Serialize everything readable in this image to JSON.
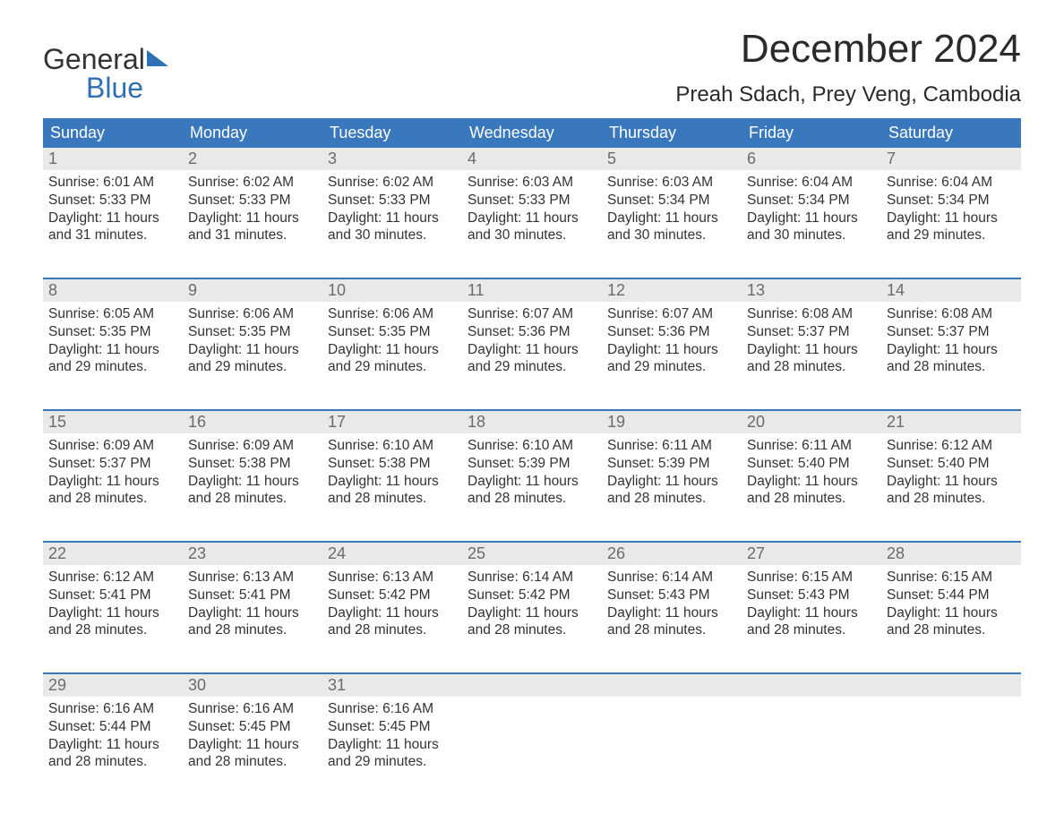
{
  "brand": {
    "word1": "General",
    "word2": "Blue"
  },
  "title": "December 2024",
  "location": "Preah Sdach, Prey Veng, Cambodia",
  "colors": {
    "header_bg": "#3a78bd",
    "header_text": "#ffffff",
    "daynum_bg": "#e9e9e9",
    "daynum_text": "#6b6b6b",
    "body_text": "#333333",
    "accent": "#2f6fb4",
    "page_bg": "#ffffff"
  },
  "weekdays": [
    "Sunday",
    "Monday",
    "Tuesday",
    "Wednesday",
    "Thursday",
    "Friday",
    "Saturday"
  ],
  "weeks": [
    [
      {
        "n": "1",
        "sunrise": "Sunrise: 6:01 AM",
        "sunset": "Sunset: 5:33 PM",
        "d1": "Daylight: 11 hours",
        "d2": "and 31 minutes."
      },
      {
        "n": "2",
        "sunrise": "Sunrise: 6:02 AM",
        "sunset": "Sunset: 5:33 PM",
        "d1": "Daylight: 11 hours",
        "d2": "and 31 minutes."
      },
      {
        "n": "3",
        "sunrise": "Sunrise: 6:02 AM",
        "sunset": "Sunset: 5:33 PM",
        "d1": "Daylight: 11 hours",
        "d2": "and 30 minutes."
      },
      {
        "n": "4",
        "sunrise": "Sunrise: 6:03 AM",
        "sunset": "Sunset: 5:33 PM",
        "d1": "Daylight: 11 hours",
        "d2": "and 30 minutes."
      },
      {
        "n": "5",
        "sunrise": "Sunrise: 6:03 AM",
        "sunset": "Sunset: 5:34 PM",
        "d1": "Daylight: 11 hours",
        "d2": "and 30 minutes."
      },
      {
        "n": "6",
        "sunrise": "Sunrise: 6:04 AM",
        "sunset": "Sunset: 5:34 PM",
        "d1": "Daylight: 11 hours",
        "d2": "and 30 minutes."
      },
      {
        "n": "7",
        "sunrise": "Sunrise: 6:04 AM",
        "sunset": "Sunset: 5:34 PM",
        "d1": "Daylight: 11 hours",
        "d2": "and 29 minutes."
      }
    ],
    [
      {
        "n": "8",
        "sunrise": "Sunrise: 6:05 AM",
        "sunset": "Sunset: 5:35 PM",
        "d1": "Daylight: 11 hours",
        "d2": "and 29 minutes."
      },
      {
        "n": "9",
        "sunrise": "Sunrise: 6:06 AM",
        "sunset": "Sunset: 5:35 PM",
        "d1": "Daylight: 11 hours",
        "d2": "and 29 minutes."
      },
      {
        "n": "10",
        "sunrise": "Sunrise: 6:06 AM",
        "sunset": "Sunset: 5:35 PM",
        "d1": "Daylight: 11 hours",
        "d2": "and 29 minutes."
      },
      {
        "n": "11",
        "sunrise": "Sunrise: 6:07 AM",
        "sunset": "Sunset: 5:36 PM",
        "d1": "Daylight: 11 hours",
        "d2": "and 29 minutes."
      },
      {
        "n": "12",
        "sunrise": "Sunrise: 6:07 AM",
        "sunset": "Sunset: 5:36 PM",
        "d1": "Daylight: 11 hours",
        "d2": "and 29 minutes."
      },
      {
        "n": "13",
        "sunrise": "Sunrise: 6:08 AM",
        "sunset": "Sunset: 5:37 PM",
        "d1": "Daylight: 11 hours",
        "d2": "and 28 minutes."
      },
      {
        "n": "14",
        "sunrise": "Sunrise: 6:08 AM",
        "sunset": "Sunset: 5:37 PM",
        "d1": "Daylight: 11 hours",
        "d2": "and 28 minutes."
      }
    ],
    [
      {
        "n": "15",
        "sunrise": "Sunrise: 6:09 AM",
        "sunset": "Sunset: 5:37 PM",
        "d1": "Daylight: 11 hours",
        "d2": "and 28 minutes."
      },
      {
        "n": "16",
        "sunrise": "Sunrise: 6:09 AM",
        "sunset": "Sunset: 5:38 PM",
        "d1": "Daylight: 11 hours",
        "d2": "and 28 minutes."
      },
      {
        "n": "17",
        "sunrise": "Sunrise: 6:10 AM",
        "sunset": "Sunset: 5:38 PM",
        "d1": "Daylight: 11 hours",
        "d2": "and 28 minutes."
      },
      {
        "n": "18",
        "sunrise": "Sunrise: 6:10 AM",
        "sunset": "Sunset: 5:39 PM",
        "d1": "Daylight: 11 hours",
        "d2": "and 28 minutes."
      },
      {
        "n": "19",
        "sunrise": "Sunrise: 6:11 AM",
        "sunset": "Sunset: 5:39 PM",
        "d1": "Daylight: 11 hours",
        "d2": "and 28 minutes."
      },
      {
        "n": "20",
        "sunrise": "Sunrise: 6:11 AM",
        "sunset": "Sunset: 5:40 PM",
        "d1": "Daylight: 11 hours",
        "d2": "and 28 minutes."
      },
      {
        "n": "21",
        "sunrise": "Sunrise: 6:12 AM",
        "sunset": "Sunset: 5:40 PM",
        "d1": "Daylight: 11 hours",
        "d2": "and 28 minutes."
      }
    ],
    [
      {
        "n": "22",
        "sunrise": "Sunrise: 6:12 AM",
        "sunset": "Sunset: 5:41 PM",
        "d1": "Daylight: 11 hours",
        "d2": "and 28 minutes."
      },
      {
        "n": "23",
        "sunrise": "Sunrise: 6:13 AM",
        "sunset": "Sunset: 5:41 PM",
        "d1": "Daylight: 11 hours",
        "d2": "and 28 minutes."
      },
      {
        "n": "24",
        "sunrise": "Sunrise: 6:13 AM",
        "sunset": "Sunset: 5:42 PM",
        "d1": "Daylight: 11 hours",
        "d2": "and 28 minutes."
      },
      {
        "n": "25",
        "sunrise": "Sunrise: 6:14 AM",
        "sunset": "Sunset: 5:42 PM",
        "d1": "Daylight: 11 hours",
        "d2": "and 28 minutes."
      },
      {
        "n": "26",
        "sunrise": "Sunrise: 6:14 AM",
        "sunset": "Sunset: 5:43 PM",
        "d1": "Daylight: 11 hours",
        "d2": "and 28 minutes."
      },
      {
        "n": "27",
        "sunrise": "Sunrise: 6:15 AM",
        "sunset": "Sunset: 5:43 PM",
        "d1": "Daylight: 11 hours",
        "d2": "and 28 minutes."
      },
      {
        "n": "28",
        "sunrise": "Sunrise: 6:15 AM",
        "sunset": "Sunset: 5:44 PM",
        "d1": "Daylight: 11 hours",
        "d2": "and 28 minutes."
      }
    ],
    [
      {
        "n": "29",
        "sunrise": "Sunrise: 6:16 AM",
        "sunset": "Sunset: 5:44 PM",
        "d1": "Daylight: 11 hours",
        "d2": "and 28 minutes."
      },
      {
        "n": "30",
        "sunrise": "Sunrise: 6:16 AM",
        "sunset": "Sunset: 5:45 PM",
        "d1": "Daylight: 11 hours",
        "d2": "and 28 minutes."
      },
      {
        "n": "31",
        "sunrise": "Sunrise: 6:16 AM",
        "sunset": "Sunset: 5:45 PM",
        "d1": "Daylight: 11 hours",
        "d2": "and 29 minutes."
      },
      null,
      null,
      null,
      null
    ]
  ]
}
